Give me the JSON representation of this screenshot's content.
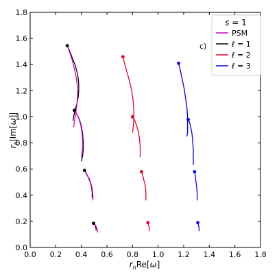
{
  "chart_data": {
    "type": "line",
    "panel_label": "c)",
    "xlabel": "r_h Re[ω]",
    "ylabel": "r_h |Im[ω]|",
    "xlim": [
      0.0,
      1.8
    ],
    "ylim": [
      0.0,
      1.8
    ],
    "xticks": [
      0.0,
      0.2,
      0.4,
      0.6,
      0.8,
      1.0,
      1.2,
      1.4,
      1.6,
      1.8
    ],
    "yticks": [
      0.0,
      0.2,
      0.4,
      0.6,
      0.8,
      1.0,
      1.2,
      1.4,
      1.6,
      1.8
    ],
    "grid": false,
    "legend": {
      "placement": "top-right",
      "title": "s = 1",
      "entries": [
        {
          "label": "PSM",
          "color": "#cc00cc"
        },
        {
          "label": "ℓ = 1",
          "color": "#000000"
        },
        {
          "label": "ℓ = 2",
          "color": "#e8002a"
        },
        {
          "label": "ℓ = 3",
          "color": "#0000ee"
        }
      ]
    },
    "series": [
      {
        "name": "ℓ = 1",
        "color": "#000000",
        "curves": [
          [
            [
              0.29,
              1.545
            ],
            [
              0.31,
              1.5
            ],
            [
              0.33,
              1.45
            ],
            [
              0.35,
              1.4
            ],
            [
              0.365,
              1.35
            ],
            [
              0.375,
              1.3
            ],
            [
              0.38,
              1.25
            ],
            [
              0.38,
              1.2
            ],
            [
              0.375,
              1.15
            ],
            [
              0.365,
              1.1
            ],
            [
              0.35,
              1.05
            ],
            [
              0.34,
              1.0
            ],
            [
              0.335,
              0.97
            ]
          ],
          [
            [
              0.345,
              1.05
            ],
            [
              0.365,
              1.02
            ],
            [
              0.385,
              0.98
            ],
            [
              0.4,
              0.93
            ],
            [
              0.41,
              0.87
            ],
            [
              0.415,
              0.81
            ],
            [
              0.415,
              0.75
            ],
            [
              0.41,
              0.7
            ],
            [
              0.4,
              0.66
            ]
          ],
          [
            [
              0.425,
              0.59
            ],
            [
              0.44,
              0.565
            ],
            [
              0.455,
              0.535
            ],
            [
              0.47,
              0.5
            ],
            [
              0.48,
              0.46
            ],
            [
              0.485,
              0.42
            ],
            [
              0.485,
              0.38
            ]
          ],
          [
            [
              0.495,
              0.185
            ],
            [
              0.505,
              0.175
            ],
            [
              0.51,
              0.16
            ],
            [
              0.515,
              0.145
            ],
            [
              0.515,
              0.13
            ]
          ]
        ]
      },
      {
        "name": "PSM",
        "color": "#cc00cc",
        "curves": [
          [
            [
              0.29,
              1.545
            ],
            [
              0.31,
              1.49
            ],
            [
              0.33,
              1.43
            ],
            [
              0.345,
              1.37
            ],
            [
              0.36,
              1.3
            ],
            [
              0.37,
              1.23
            ],
            [
              0.37,
              1.16
            ],
            [
              0.365,
              1.09
            ],
            [
              0.355,
              1.02
            ],
            [
              0.345,
              0.96
            ],
            [
              0.34,
              0.92
            ]
          ],
          [
            [
              0.345,
              1.05
            ],
            [
              0.36,
              1.03
            ],
            [
              0.38,
              0.99
            ],
            [
              0.395,
              0.94
            ],
            [
              0.405,
              0.88
            ],
            [
              0.41,
              0.82
            ],
            [
              0.41,
              0.76
            ],
            [
              0.405,
              0.72
            ],
            [
              0.4,
              0.69
            ]
          ],
          [
            [
              0.425,
              0.59
            ],
            [
              0.44,
              0.56
            ],
            [
              0.46,
              0.53
            ],
            [
              0.475,
              0.49
            ],
            [
              0.485,
              0.45
            ],
            [
              0.49,
              0.4
            ],
            [
              0.49,
              0.36
            ]
          ],
          [
            [
              0.495,
              0.185
            ],
            [
              0.51,
              0.17
            ],
            [
              0.52,
              0.15
            ],
            [
              0.525,
              0.13
            ],
            [
              0.525,
              0.115
            ]
          ]
        ]
      },
      {
        "name": "ℓ = 2",
        "color": "#e8002a",
        "curves": [
          [
            [
              0.725,
              1.46
            ],
            [
              0.74,
              1.4
            ],
            [
              0.76,
              1.33
            ],
            [
              0.78,
              1.26
            ],
            [
              0.795,
              1.19
            ],
            [
              0.805,
              1.12
            ],
            [
              0.81,
              1.05
            ],
            [
              0.81,
              0.98
            ],
            [
              0.805,
              0.92
            ],
            [
              0.8,
              0.88
            ]
          ],
          [
            [
              0.8,
              1.0
            ],
            [
              0.815,
              0.98
            ],
            [
              0.83,
              0.94
            ],
            [
              0.845,
              0.89
            ],
            [
              0.855,
              0.83
            ],
            [
              0.86,
              0.77
            ],
            [
              0.86,
              0.72
            ],
            [
              0.86,
              0.69
            ]
          ],
          [
            [
              0.87,
              0.58
            ],
            [
              0.88,
              0.55
            ],
            [
              0.89,
              0.51
            ],
            [
              0.9,
              0.47
            ],
            [
              0.905,
              0.42
            ],
            [
              0.905,
              0.38
            ],
            [
              0.905,
              0.36
            ]
          ],
          [
            [
              0.92,
              0.19
            ],
            [
              0.925,
              0.17
            ],
            [
              0.93,
              0.15
            ],
            [
              0.93,
              0.125
            ]
          ]
        ]
      },
      {
        "name": "ℓ = 3",
        "color": "#0000ee",
        "curves": [
          [
            [
              1.16,
              1.41
            ],
            [
              1.175,
              1.35
            ],
            [
              1.19,
              1.28
            ],
            [
              1.205,
              1.21
            ],
            [
              1.215,
              1.14
            ],
            [
              1.225,
              1.07
            ],
            [
              1.23,
              1.0
            ],
            [
              1.23,
              0.94
            ],
            [
              1.23,
              0.88
            ],
            [
              1.225,
              0.85
            ]
          ],
          [
            [
              1.235,
              0.98
            ],
            [
              1.245,
              0.96
            ],
            [
              1.255,
              0.92
            ],
            [
              1.265,
              0.87
            ],
            [
              1.27,
              0.81
            ],
            [
              1.275,
              0.75
            ],
            [
              1.275,
              0.7
            ],
            [
              1.275,
              0.63
            ]
          ],
          [
            [
              1.285,
              0.58
            ],
            [
              1.29,
              0.55
            ],
            [
              1.295,
              0.51
            ],
            [
              1.3,
              0.47
            ],
            [
              1.305,
              0.42
            ],
            [
              1.305,
              0.38
            ],
            [
              1.305,
              0.36
            ]
          ],
          [
            [
              1.31,
              0.19
            ],
            [
              1.315,
              0.17
            ],
            [
              1.32,
              0.15
            ],
            [
              1.32,
              0.125
            ]
          ]
        ]
      }
    ],
    "markers": [
      {
        "color": "#000000",
        "points": [
          [
            0.29,
            1.545
          ],
          [
            0.345,
            1.05
          ],
          [
            0.425,
            0.59
          ],
          [
            0.495,
            0.185
          ]
        ]
      },
      {
        "color": "#e8002a",
        "points": [
          [
            0.725,
            1.46
          ],
          [
            0.8,
            1.0
          ],
          [
            0.87,
            0.58
          ],
          [
            0.92,
            0.19
          ]
        ]
      },
      {
        "color": "#0000ee",
        "points": [
          [
            1.16,
            1.41
          ],
          [
            1.235,
            0.98
          ],
          [
            1.285,
            0.58
          ],
          [
            1.31,
            0.19
          ]
        ]
      }
    ]
  }
}
